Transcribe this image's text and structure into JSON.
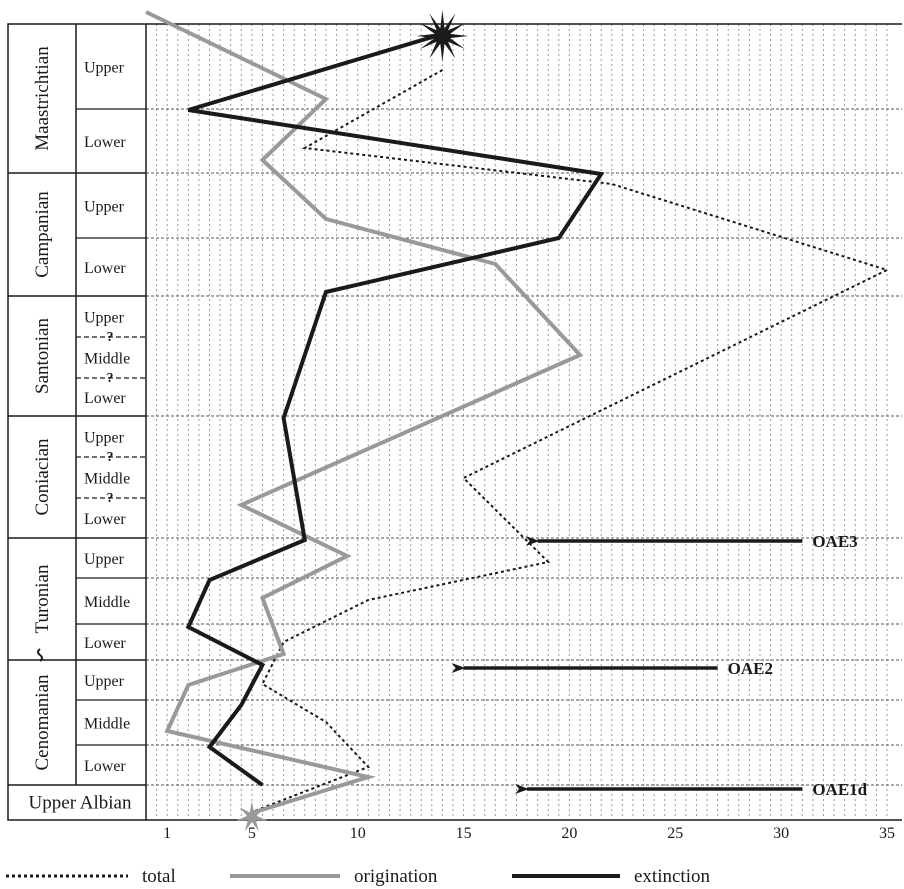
{
  "chart_data": {
    "type": "line",
    "x_ticks": [
      "1",
      "5",
      "10",
      "15",
      "20",
      "25",
      "30",
      "35"
    ],
    "x_tick_values": [
      1,
      5,
      10,
      15,
      20,
      25,
      30,
      35
    ],
    "xlim": [
      0,
      35
    ],
    "x_minor_step": 0.5,
    "intervals": [
      {
        "stage": "Maastrichtian",
        "substage": "Upper"
      },
      {
        "stage": "Maastrichtian",
        "substage": "Lower"
      },
      {
        "stage": "Campanian",
        "substage": "Upper"
      },
      {
        "stage": "Campanian",
        "substage": "Lower"
      },
      {
        "stage": "Santonian",
        "substage": "Upper"
      },
      {
        "stage": "Santonian",
        "substage": "Middle"
      },
      {
        "stage": "Santonian",
        "substage": "Lower"
      },
      {
        "stage": "Coniacian",
        "substage": "Upper"
      },
      {
        "stage": "Coniacian",
        "substage": "Middle"
      },
      {
        "stage": "Coniacian",
        "substage": "Lower"
      },
      {
        "stage": "Turonian",
        "substage": "Upper"
      },
      {
        "stage": "Turonian",
        "substage": "Middle"
      },
      {
        "stage": "Turonian",
        "substage": "Lower"
      },
      {
        "stage": "Cenomanian",
        "substage": "Upper"
      },
      {
        "stage": "Cenomanian",
        "substage": "Middle"
      },
      {
        "stage": "Cenomanian",
        "substage": "Lower"
      },
      {
        "stage": "Upper Albian",
        "substage": ""
      }
    ],
    "stages": [
      "Maastrichtian",
      "Campanian",
      "Santonian",
      "Coniacian",
      "Turonian",
      "Cenomanian",
      "Upper Albian"
    ],
    "uncertain_boundary_symbol": "?",
    "series": [
      {
        "name": "total",
        "color": "#1a1a1a",
        "style": "dotted",
        "points": [
          {
            "interval": "Upper Maastrichtian",
            "value": 14
          },
          {
            "interval": "Lower Maastrichtian",
            "value": 7.5
          },
          {
            "interval": "Upper Campanian",
            "value": 22
          },
          {
            "interval": "Lower Campanian",
            "value": 35
          },
          {
            "interval": "Coniacian Middle/Lower",
            "value": 15
          },
          {
            "interval": "Upper Turonian",
            "value": 19
          },
          {
            "interval": "Middle/Lower Turonian",
            "value": 10.5
          },
          {
            "interval": "Lower Turonian",
            "value": 6.5
          },
          {
            "interval": "Upper Cenomanian",
            "value": 5.5
          },
          {
            "interval": "Middle Cenomanian",
            "value": 8.5
          },
          {
            "interval": "Lower Cenomanian",
            "value": 10.5
          },
          {
            "interval": "Upper Albian",
            "value": 5
          }
        ]
      },
      {
        "name": "origination",
        "color": "#999999",
        "style": "solid",
        "points": [
          {
            "interval": "Maastrichtian top",
            "value": 0
          },
          {
            "interval": "Upper Maastrichtian",
            "value": 8.5
          },
          {
            "interval": "Lower Maastrichtian",
            "value": 5.5
          },
          {
            "interval": "Upper Campanian",
            "value": 8.5
          },
          {
            "interval": "Lower Campanian",
            "value": 16.5
          },
          {
            "interval": "Middle Santonian",
            "value": 20.5
          },
          {
            "interval": "Lower Coniacian",
            "value": 4.5
          },
          {
            "interval": "Upper Turonian",
            "value": 9.5
          },
          {
            "interval": "Middle Turonian",
            "value": 5.5
          },
          {
            "interval": "Lower Turonian",
            "value": 6.5
          },
          {
            "interval": "Upper Cenomanian",
            "value": 2
          },
          {
            "interval": "Middle Cenomanian",
            "value": 1
          },
          {
            "interval": "Lower Cenomanian",
            "value": 10.5
          },
          {
            "interval": "Upper Albian",
            "value": 5
          }
        ]
      },
      {
        "name": "extinction",
        "color": "#1a1a1a",
        "style": "solid",
        "points": [
          {
            "interval": "Maastrichtian top",
            "value": 14
          },
          {
            "interval": "Upper Maastrichtian",
            "value": 2
          },
          {
            "interval": "Upper Campanian",
            "value": 21.5
          },
          {
            "interval": "Lower Campanian",
            "value": 19.5
          },
          {
            "interval": "Upper Santonian",
            "value": 8.5
          },
          {
            "interval": "Upper Coniacian",
            "value": 6.5
          },
          {
            "interval": "Upper Turonian",
            "value": 7.5
          },
          {
            "interval": "Middle Turonian",
            "value": 3
          },
          {
            "interval": "Lower Turonian",
            "value": 2
          },
          {
            "interval": "Upper Cenomanian",
            "value": 5.5
          },
          {
            "interval": "Middle Cenomanian",
            "value": 4.5
          },
          {
            "interval": "Lower Cenomanian",
            "value": 3
          },
          {
            "interval": "Upper Albian",
            "value": 5.5
          }
        ]
      }
    ],
    "events": [
      {
        "label": "OAE3",
        "interval": "Lower Coniacian / Upper Turonian",
        "arrow_from": 31,
        "arrow_to": 18.5
      },
      {
        "label": "OAE2",
        "interval": "Upper Cenomanian",
        "arrow_from": 27,
        "arrow_to": 15
      },
      {
        "label": "OAE1d",
        "interval": "Upper Albian",
        "arrow_from": 31,
        "arrow_to": 18
      },
      {
        "label": "",
        "marker": "star",
        "color": "#1a1a1a",
        "interval": "Maastrichtian top",
        "value": 14
      },
      {
        "label": "",
        "marker": "star",
        "color": "#999999",
        "interval": "Upper Albian base",
        "value": 5
      }
    ],
    "legend": {
      "placement": "bottom",
      "entries": [
        {
          "label": "total",
          "style": "dotted",
          "color": "#1a1a1a"
        },
        {
          "label": "origination",
          "style": "solid",
          "color": "#999999"
        },
        {
          "label": "extinction",
          "style": "solid",
          "color": "#1a1a1a"
        }
      ]
    },
    "grid": "dashed vertical lines at every 0.5 unit; dashed horizontal lines at substage boundaries",
    "title": "",
    "xlabel": "",
    "ylabel": ""
  }
}
